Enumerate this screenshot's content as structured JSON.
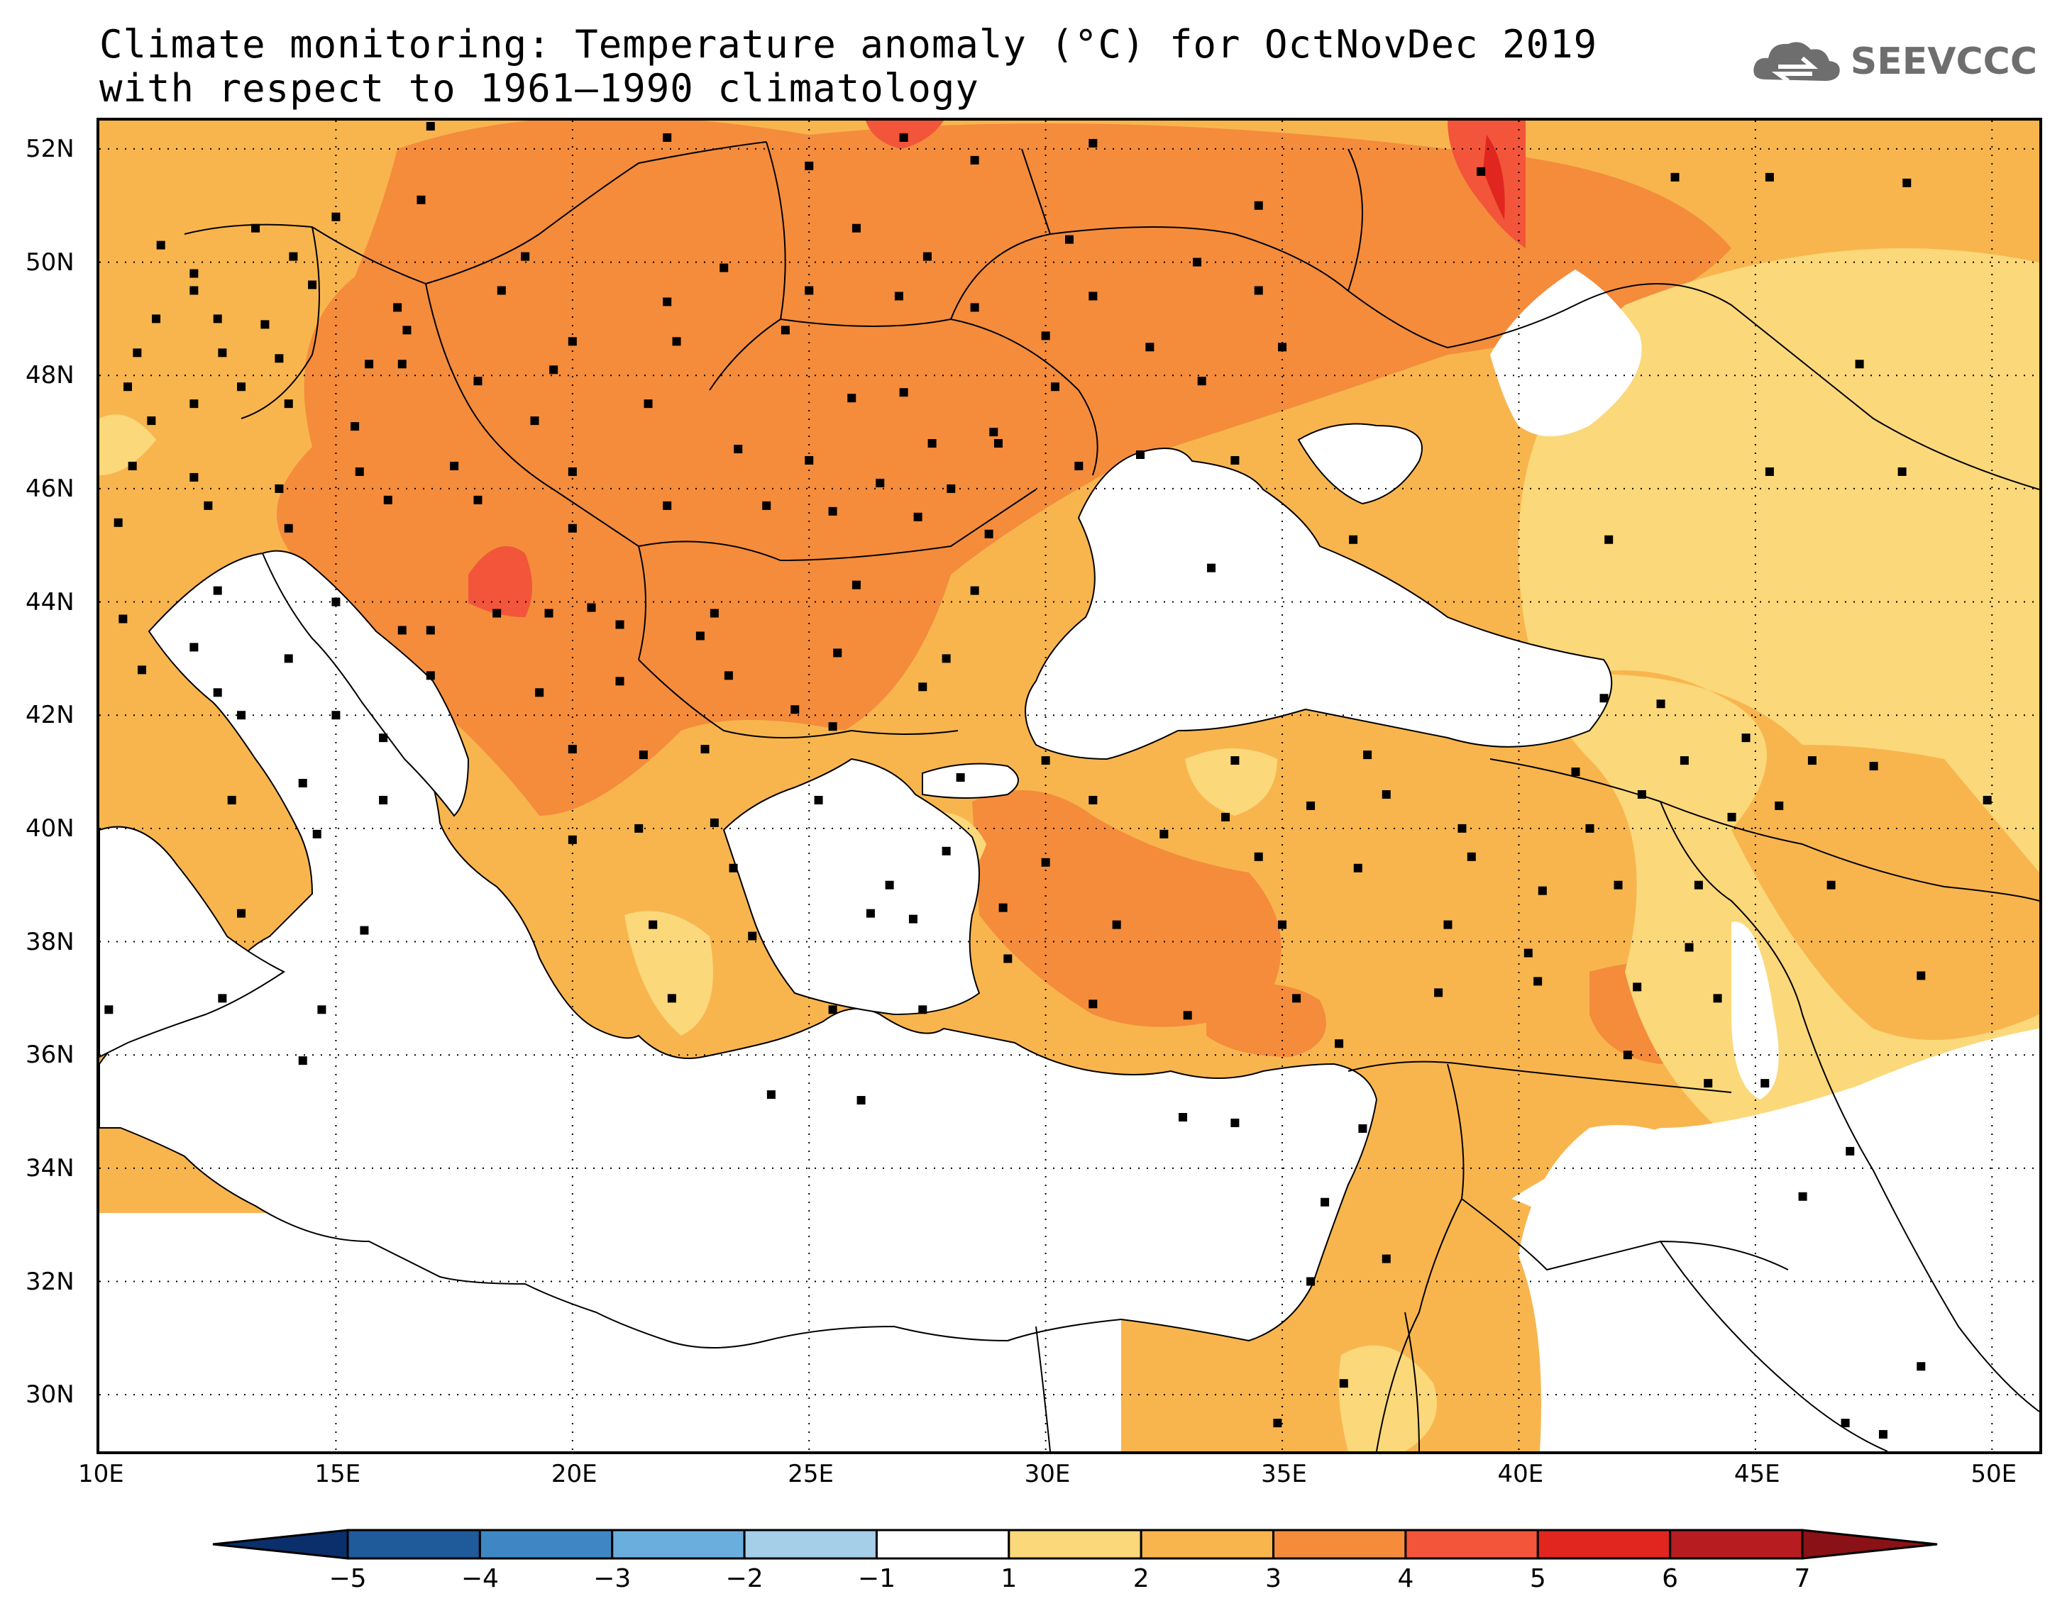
{
  "title": {
    "line1": "Climate monitoring: Temperature anomaly (°C) for OctNovDec 2019",
    "line2": "with respect to 1961–1990 climatology"
  },
  "logo": {
    "text": "SEEVCCC",
    "icon": "cloud-icon"
  },
  "map": {
    "lon_range": [
      10,
      51
    ],
    "lat_range": [
      29,
      52.5
    ],
    "x_ticks": [
      {
        "lon": 10,
        "label": "10E"
      },
      {
        "lon": 15,
        "label": "15E"
      },
      {
        "lon": 20,
        "label": "20E"
      },
      {
        "lon": 25,
        "label": "25E"
      },
      {
        "lon": 30,
        "label": "30E"
      },
      {
        "lon": 35,
        "label": "35E"
      },
      {
        "lon": 40,
        "label": "40E"
      },
      {
        "lon": 45,
        "label": "45E"
      },
      {
        "lon": 50,
        "label": "50E"
      }
    ],
    "y_ticks": [
      {
        "lat": 52,
        "label": "52N"
      },
      {
        "lat": 50,
        "label": "50N"
      },
      {
        "lat": 48,
        "label": "48N"
      },
      {
        "lat": 46,
        "label": "46N"
      },
      {
        "lat": 44,
        "label": "44N"
      },
      {
        "lat": 42,
        "label": "42N"
      },
      {
        "lat": 40,
        "label": "40N"
      },
      {
        "lat": 38,
        "label": "38N"
      },
      {
        "lat": 36,
        "label": "36N"
      },
      {
        "lat": 34,
        "label": "34N"
      },
      {
        "lat": 32,
        "label": "32N"
      },
      {
        "lat": 30,
        "label": "30N"
      }
    ],
    "grid": "dotted",
    "anomaly_colors": {
      "a1": "#fbd87a",
      "a2": "#f8b54e",
      "a3": "#f48c3c",
      "a4": "#f2553a",
      "a5": "#e0261f"
    },
    "stations": [
      [
        17.0,
        52.4
      ],
      [
        22.0,
        52.2
      ],
      [
        27.0,
        52.2
      ],
      [
        31.0,
        52.1
      ],
      [
        25.0,
        51.7
      ],
      [
        28.5,
        51.8
      ],
      [
        34.5,
        51.0
      ],
      [
        39.2,
        51.6
      ],
      [
        43.3,
        51.5
      ],
      [
        45.3,
        51.5
      ],
      [
        48.2,
        51.4
      ],
      [
        16.8,
        51.1
      ],
      [
        15.0,
        50.8
      ],
      [
        13.3,
        50.6
      ],
      [
        11.3,
        50.3
      ],
      [
        12.0,
        49.8
      ],
      [
        14.1,
        50.1
      ],
      [
        19.0,
        50.1
      ],
      [
        23.2,
        49.9
      ],
      [
        26.0,
        50.6
      ],
      [
        27.5,
        50.1
      ],
      [
        30.5,
        50.4
      ],
      [
        33.2,
        50.0
      ],
      [
        12.0,
        49.5
      ],
      [
        14.5,
        49.6
      ],
      [
        16.3,
        49.2
      ],
      [
        18.5,
        49.5
      ],
      [
        22.0,
        49.3
      ],
      [
        25.0,
        49.5
      ],
      [
        26.9,
        49.4
      ],
      [
        28.5,
        49.2
      ],
      [
        31.0,
        49.4
      ],
      [
        34.5,
        49.5
      ],
      [
        11.2,
        49.0
      ],
      [
        12.5,
        49.0
      ],
      [
        13.5,
        48.9
      ],
      [
        16.5,
        48.8
      ],
      [
        20.0,
        48.6
      ],
      [
        22.2,
        48.6
      ],
      [
        24.5,
        48.8
      ],
      [
        30.0,
        48.7
      ],
      [
        32.2,
        48.5
      ],
      [
        35.0,
        48.5
      ],
      [
        10.8,
        48.4
      ],
      [
        12.6,
        48.4
      ],
      [
        13.8,
        48.3
      ],
      [
        15.7,
        48.2
      ],
      [
        16.4,
        48.2
      ],
      [
        19.6,
        48.1
      ],
      [
        27.0,
        47.7
      ],
      [
        30.2,
        47.8
      ],
      [
        33.3,
        47.9
      ],
      [
        47.2,
        48.2
      ],
      [
        10.6,
        47.8
      ],
      [
        12.0,
        47.5
      ],
      [
        13.0,
        47.8
      ],
      [
        14.0,
        47.5
      ],
      [
        15.4,
        47.1
      ],
      [
        18.0,
        47.9
      ],
      [
        21.6,
        47.5
      ],
      [
        25.9,
        47.6
      ],
      [
        28.9,
        47.0
      ],
      [
        11.1,
        47.2
      ],
      [
        19.2,
        47.2
      ],
      [
        23.5,
        46.7
      ],
      [
        25.0,
        46.5
      ],
      [
        27.6,
        46.8
      ],
      [
        29.0,
        46.8
      ],
      [
        10.7,
        46.4
      ],
      [
        12.0,
        46.2
      ],
      [
        13.8,
        46.0
      ],
      [
        15.5,
        46.3
      ],
      [
        17.5,
        46.4
      ],
      [
        20.0,
        46.3
      ],
      [
        26.5,
        46.1
      ],
      [
        28.0,
        46.0
      ],
      [
        30.7,
        46.4
      ],
      [
        32.0,
        46.6
      ],
      [
        34.0,
        46.5
      ],
      [
        45.3,
        46.3
      ],
      [
        48.1,
        46.3
      ],
      [
        10.4,
        45.4
      ],
      [
        12.3,
        45.7
      ],
      [
        14.0,
        45.3
      ],
      [
        16.1,
        45.8
      ],
      [
        18.0,
        45.8
      ],
      [
        20.0,
        45.3
      ],
      [
        22.0,
        45.7
      ],
      [
        24.1,
        45.7
      ],
      [
        25.5,
        45.6
      ],
      [
        27.3,
        45.5
      ],
      [
        28.8,
        45.2
      ],
      [
        33.5,
        44.6
      ],
      [
        36.5,
        45.1
      ],
      [
        41.9,
        45.1
      ],
      [
        12.5,
        44.2
      ],
      [
        15.0,
        44.0
      ],
      [
        17.0,
        43.5
      ],
      [
        19.5,
        43.8
      ],
      [
        21.0,
        43.6
      ],
      [
        23.0,
        43.8
      ],
      [
        26.0,
        44.3
      ],
      [
        28.5,
        44.2
      ],
      [
        10.5,
        43.7
      ],
      [
        12.0,
        43.2
      ],
      [
        14.0,
        43.0
      ],
      [
        16.4,
        43.5
      ],
      [
        18.4,
        43.8
      ],
      [
        20.4,
        43.9
      ],
      [
        22.7,
        43.4
      ],
      [
        25.6,
        43.1
      ],
      [
        27.9,
        43.0
      ],
      [
        10.9,
        42.8
      ],
      [
        12.5,
        42.4
      ],
      [
        15.0,
        42.0
      ],
      [
        17.0,
        42.7
      ],
      [
        19.3,
        42.4
      ],
      [
        21.0,
        42.6
      ],
      [
        23.3,
        42.7
      ],
      [
        24.7,
        42.1
      ],
      [
        27.4,
        42.5
      ],
      [
        41.8,
        42.3
      ],
      [
        43.0,
        42.2
      ],
      [
        13.0,
        42.0
      ],
      [
        16.0,
        41.6
      ],
      [
        20.0,
        41.4
      ],
      [
        21.5,
        41.3
      ],
      [
        22.8,
        41.4
      ],
      [
        25.5,
        41.8
      ],
      [
        30.0,
        41.2
      ],
      [
        34.0,
        41.2
      ],
      [
        36.8,
        41.3
      ],
      [
        41.2,
        41.0
      ],
      [
        43.5,
        41.2
      ],
      [
        44.8,
        41.6
      ],
      [
        46.2,
        41.2
      ],
      [
        47.5,
        41.1
      ],
      [
        12.8,
        40.5
      ],
      [
        14.3,
        40.8
      ],
      [
        16.0,
        40.5
      ],
      [
        21.4,
        40.0
      ],
      [
        23.0,
        40.1
      ],
      [
        25.2,
        40.5
      ],
      [
        28.2,
        40.9
      ],
      [
        31.0,
        40.5
      ],
      [
        33.8,
        40.2
      ],
      [
        35.6,
        40.4
      ],
      [
        37.2,
        40.6
      ],
      [
        38.8,
        40.0
      ],
      [
        41.5,
        40.0
      ],
      [
        42.6,
        40.6
      ],
      [
        44.5,
        40.2
      ],
      [
        45.5,
        40.4
      ],
      [
        49.9,
        40.5
      ],
      [
        14.6,
        39.9
      ],
      [
        20.0,
        39.8
      ],
      [
        23.4,
        39.3
      ],
      [
        26.7,
        39.0
      ],
      [
        27.9,
        39.6
      ],
      [
        30.0,
        39.4
      ],
      [
        32.5,
        39.9
      ],
      [
        34.5,
        39.5
      ],
      [
        36.6,
        39.3
      ],
      [
        39.0,
        39.5
      ],
      [
        40.5,
        38.9
      ],
      [
        42.1,
        39.0
      ],
      [
        43.8,
        39.0
      ],
      [
        46.6,
        39.0
      ],
      [
        13.0,
        38.5
      ],
      [
        15.6,
        38.2
      ],
      [
        21.7,
        38.3
      ],
      [
        23.8,
        38.1
      ],
      [
        26.3,
        38.5
      ],
      [
        27.2,
        38.4
      ],
      [
        29.1,
        38.6
      ],
      [
        31.5,
        38.3
      ],
      [
        35.0,
        38.3
      ],
      [
        38.5,
        38.3
      ],
      [
        40.2,
        37.8
      ],
      [
        42.5,
        37.2
      ],
      [
        43.6,
        37.9
      ],
      [
        44.2,
        37.0
      ],
      [
        48.5,
        37.4
      ],
      [
        12.6,
        37.0
      ],
      [
        14.7,
        36.8
      ],
      [
        22.1,
        37.0
      ],
      [
        25.5,
        36.8
      ],
      [
        27.4,
        36.8
      ],
      [
        29.2,
        37.7
      ],
      [
        31.0,
        36.9
      ],
      [
        33.0,
        36.7
      ],
      [
        35.3,
        37.0
      ],
      [
        36.2,
        36.2
      ],
      [
        38.3,
        37.1
      ],
      [
        40.4,
        37.3
      ],
      [
        10.2,
        36.8
      ],
      [
        14.3,
        35.9
      ],
      [
        24.2,
        35.3
      ],
      [
        26.1,
        35.2
      ],
      [
        32.9,
        34.9
      ],
      [
        34.0,
        34.8
      ],
      [
        36.7,
        34.7
      ],
      [
        45.2,
        35.5
      ],
      [
        47.0,
        34.3
      ],
      [
        35.9,
        33.4
      ],
      [
        37.2,
        32.4
      ],
      [
        35.6,
        32.0
      ],
      [
        36.3,
        30.2
      ],
      [
        34.9,
        29.5
      ],
      [
        46.9,
        29.5
      ],
      [
        47.7,
        29.3
      ],
      [
        48.5,
        30.5
      ],
      [
        42.3,
        36.0
      ],
      [
        44.0,
        35.5
      ],
      [
        46.0,
        33.5
      ]
    ]
  },
  "colorbar": {
    "labels": [
      "−5",
      "−4",
      "−3",
      "−2",
      "−1",
      "1",
      "2",
      "3",
      "4",
      "5",
      "6",
      "7"
    ],
    "colors": [
      "#1f5a9a",
      "#3f87c4",
      "#6aaede",
      "#a5cfe8",
      "#ffffff",
      "#fbd87a",
      "#f8b54e",
      "#f48c3c",
      "#f2553a",
      "#e0261f",
      "#b61c20"
    ],
    "under_color": "#0b2f6b",
    "over_color": "#8a1116"
  }
}
